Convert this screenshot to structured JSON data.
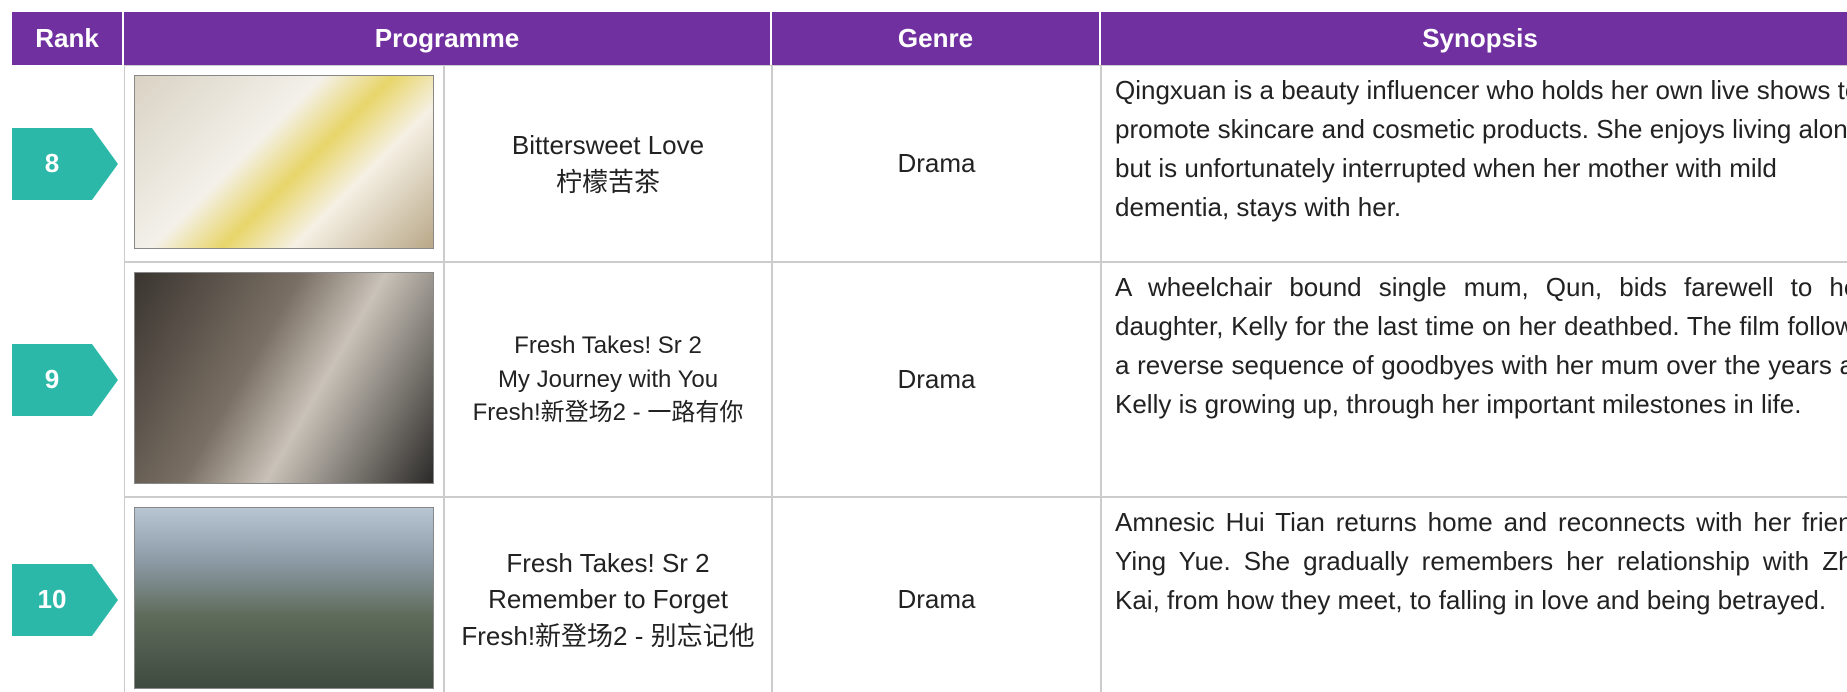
{
  "header": {
    "columns": [
      "Rank",
      "Programme",
      "Genre",
      "Synopsis"
    ]
  },
  "rows": [
    {
      "rank": "8",
      "programme": [
        "Bittersweet Love",
        "柠檬苦茶"
      ],
      "genre": "Drama",
      "synopsis": "Qingxuan is a beauty influencer who holds her own live shows to promote skincare and cosmetic products. She enjoys living alone but is unfortunately interrupted when her mother with mild dementia, stays with her."
    },
    {
      "rank": "9",
      "programme": [
        "Fresh Takes! Sr 2",
        "My Journey with You",
        "Fresh!新登场2 - 一路有你"
      ],
      "genre": "Drama",
      "synopsis": "A wheelchair bound single mum, Qun, bids farewell to her daughter, Kelly for the last time on her deathbed. The film follows a reverse sequence of goodbyes with her mum over the years as Kelly is growing up, through her important milestones in life."
    },
    {
      "rank": "10",
      "programme": [
        "Fresh Takes! Sr 2",
        "Remember to Forget",
        "Fresh!新登场2 - 别忘记他"
      ],
      "genre": "Drama",
      "synopsis": "Amnesic Hui Tian returns home and reconnects with her friend Ying Yue. She gradually remembers her relationship with Zhe Kai, from how they meet, to falling in love and being betrayed."
    }
  ]
}
